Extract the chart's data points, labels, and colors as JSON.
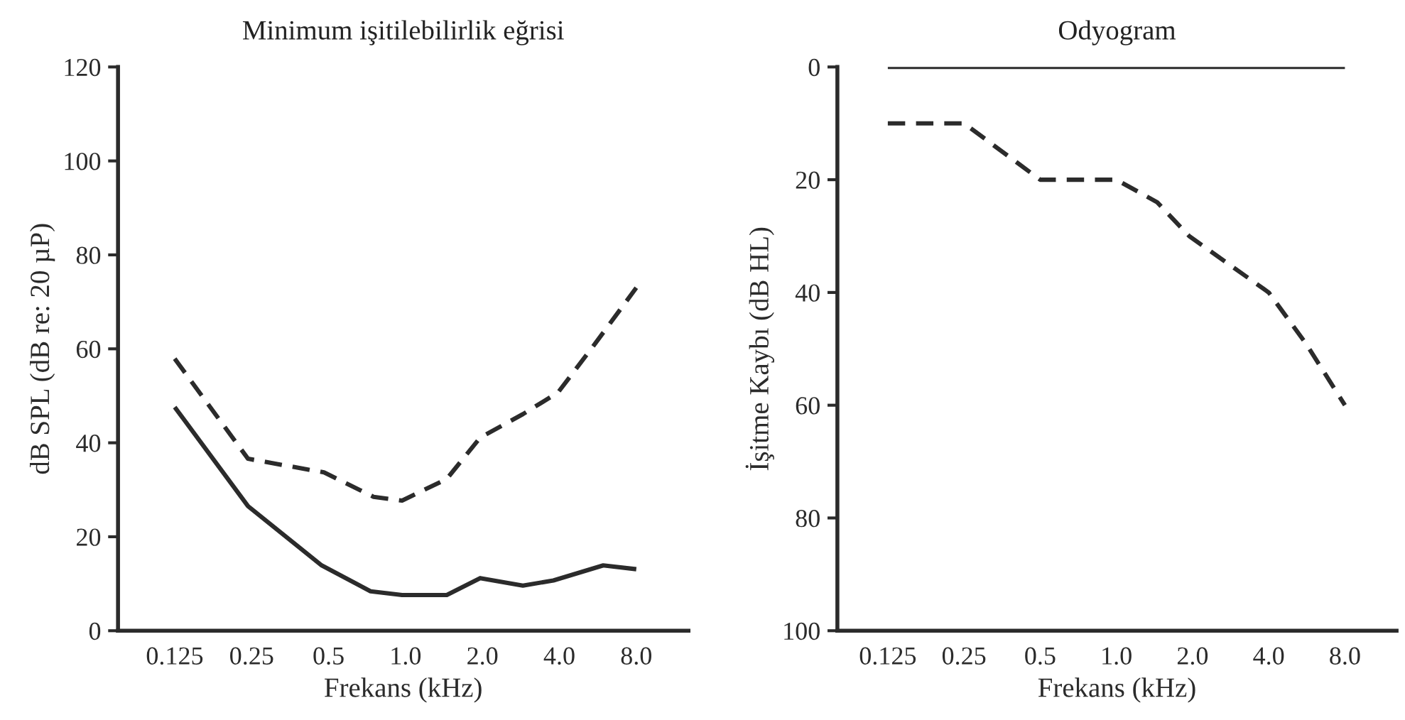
{
  "chart_data": [
    {
      "type": "line",
      "title": "Minimum işitilebilirlik eğrisi",
      "xlabel": "Frekans (kHz)",
      "ylabel": "dB SPL (dB re: 20 µP)",
      "log": "x",
      "xlim": [
        0.075,
        12.8
      ],
      "xticks": [
        {
          "value": 0.125,
          "label": "0.125"
        },
        {
          "value": 0.25,
          "label": "0.25"
        },
        {
          "value": 0.5,
          "label": "0.5"
        },
        {
          "value": 1,
          "label": "1.0"
        },
        {
          "value": 2,
          "label": "2.0"
        },
        {
          "value": 4,
          "label": "4.0"
        },
        {
          "value": 8,
          "label": "8.0"
        }
      ],
      "ylim": [
        0,
        120
      ],
      "yticks": [
        0,
        20,
        40,
        60,
        80,
        100,
        120
      ],
      "grid": false,
      "series": [
        {
          "color": "#2b2b2b",
          "line_style": "solid",
          "x": [
            0.125,
            0.242,
            0.47,
            0.73,
            0.97,
            1.45,
            1.96,
            2.88,
            3.79,
            5.94,
            8
          ],
          "values": [
            47.6,
            26.5,
            13.9,
            8.4,
            7.6,
            7.6,
            11.2,
            9.6,
            10.7,
            13.9,
            13.1
          ]
        },
        {
          "color": "#2b2b2b",
          "line_style": "dashed",
          "x": [
            0.125,
            0.242,
            0.48,
            0.75,
            0.97,
            1.45,
            1.96,
            2.88,
            3.95,
            5.45,
            8
          ],
          "values": [
            57.9,
            36.6,
            33.7,
            28.5,
            27.7,
            32.3,
            41.1,
            46.1,
            50.7,
            60.7,
            73
          ]
        }
      ]
    },
    {
      "type": "line",
      "title": "Odyogram",
      "xlabel": "Frekans (kHz)",
      "ylabel": "İşitme Kaybı (dB HL)",
      "log": "x",
      "xlim": [
        0.079,
        12.8
      ],
      "xticks": [
        {
          "value": 0.125,
          "label": "0.125"
        },
        {
          "value": 0.25,
          "label": "0.25"
        },
        {
          "value": 0.5,
          "label": "0.5"
        },
        {
          "value": 1,
          "label": "1.0"
        },
        {
          "value": 2,
          "label": "2.0"
        },
        {
          "value": 4,
          "label": "4.0"
        },
        {
          "value": 8,
          "label": "8.0"
        }
      ],
      "ylim": [
        100,
        0
      ],
      "yticks": [
        0,
        20,
        40,
        60,
        80,
        100
      ],
      "grid": false,
      "series": [
        {
          "color": "#2b2b2b",
          "line_style": "solid",
          "x": [
            0.125,
            8
          ],
          "values": [
            0,
            0
          ]
        },
        {
          "color": "#2b2b2b",
          "line_style": "dashed",
          "x": [
            0.125,
            0.25,
            0.5,
            1,
            1.45,
            1.94,
            4,
            5.6,
            8
          ],
          "values": [
            10,
            10,
            20,
            20,
            24,
            30,
            40,
            49,
            60
          ]
        }
      ]
    }
  ]
}
